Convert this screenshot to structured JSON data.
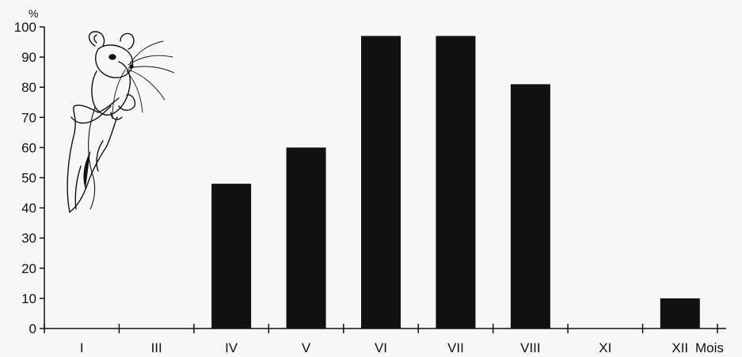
{
  "chart_data": {
    "type": "bar",
    "categories": [
      "I",
      "III",
      "IV",
      "V",
      "VI",
      "VII",
      "VIII",
      "XI",
      "XII"
    ],
    "values": [
      0,
      0,
      48,
      60,
      97,
      97,
      81,
      0,
      10
    ],
    "yunit": "%",
    "xlabel": "Mois",
    "ylim": [
      0,
      100
    ],
    "yticks": [
      0,
      10,
      20,
      30,
      40,
      50,
      60,
      70,
      80,
      90,
      100
    ],
    "grid": false,
    "legend": "none",
    "bar_color": "#111111"
  },
  "illustration": {
    "icon": "mouse-on-branch-illustration"
  }
}
